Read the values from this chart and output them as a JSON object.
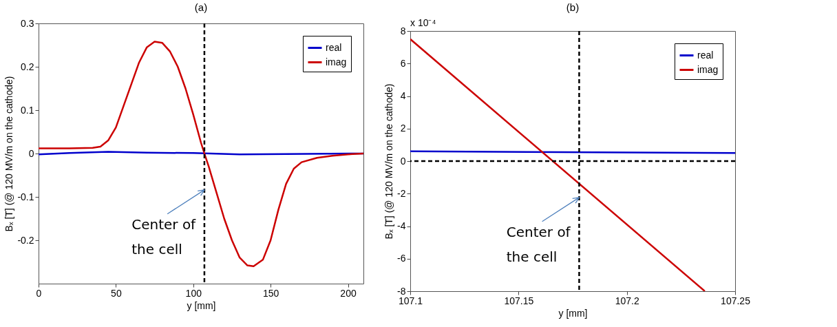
{
  "chart_data": [
    {
      "type": "line",
      "title": "(a)",
      "xlabel": "y [mm]",
      "ylabel": "Bₓ [T]  (@ 120 MV/m on the cathode)",
      "xlim": [
        0,
        210
      ],
      "ylim": [
        -0.3,
        0.3
      ],
      "xticks": [
        0,
        50,
        100,
        150,
        200
      ],
      "yticks": [
        -0.2,
        -0.1,
        0,
        0.1,
        0.2,
        0.3
      ],
      "grid": false,
      "legend": "top right",
      "line_style": "solid",
      "marker": "none",
      "series": [
        {
          "name": "real",
          "color": "#0000cc",
          "x": [
            0,
            20,
            45,
            70,
            100,
            130,
            160,
            210
          ],
          "values": [
            -0.002,
            0.001,
            0.004,
            0.002,
            0.001,
            -0.002,
            -0.001,
            0
          ]
        },
        {
          "name": "imag",
          "color": "#cc0000",
          "x": [
            0,
            20,
            35,
            40,
            45,
            50,
            55,
            60,
            65,
            70,
            75,
            80,
            85,
            90,
            95,
            100,
            105,
            107.2,
            110,
            115,
            120,
            125,
            130,
            135,
            139,
            145,
            150,
            155,
            160,
            165,
            170,
            180,
            190,
            200,
            210
          ],
          "values": [
            0.012,
            0.012,
            0.013,
            0.016,
            0.03,
            0.06,
            0.11,
            0.16,
            0.21,
            0.245,
            0.258,
            0.255,
            0.235,
            0.2,
            0.15,
            0.09,
            0.025,
            0,
            -0.03,
            -0.09,
            -0.15,
            -0.2,
            -0.24,
            -0.258,
            -0.26,
            -0.245,
            -0.2,
            -0.13,
            -0.07,
            -0.035,
            -0.02,
            -0.01,
            -0.005,
            -0.002,
            0
          ]
        }
      ],
      "ref_lines": [
        {
          "axis": "x",
          "value": 107.2,
          "color": "#000000",
          "line_style": "dashed"
        }
      ],
      "annotations": [
        "Center of the cell"
      ]
    },
    {
      "type": "line",
      "title": "(b)",
      "xlabel": "y [mm]",
      "ylabel": "Bₓ [T]  (@ 120 MV/m on the cathode)",
      "xlim": [
        107.1,
        107.25
      ],
      "ylim": [
        -8,
        8
      ],
      "xticks": [
        107.1,
        107.15,
        107.2,
        107.25
      ],
      "yticks": [
        -8,
        -6,
        -4,
        -2,
        0,
        2,
        4,
        6,
        8
      ],
      "grid": false,
      "legend": "top right",
      "line_style": "solid",
      "marker": "none",
      "series": [
        {
          "name": "real",
          "color": "#0000cc",
          "x": [
            107.1,
            107.25
          ],
          "values": [
            0.6,
            0.5
          ]
        },
        {
          "name": "imag",
          "color": "#cc0000",
          "x": [
            107.1,
            107.236
          ],
          "values": [
            7.5,
            -8
          ]
        }
      ],
      "ref_lines": [
        {
          "axis": "x",
          "value": 107.178,
          "color": "#000000",
          "line_style": "dashed"
        },
        {
          "axis": "y",
          "value": 0,
          "color": "#000000",
          "line_style": "dashed"
        }
      ],
      "annotations": [
        "x 10⁻⁴",
        "Center of the cell"
      ]
    }
  ]
}
